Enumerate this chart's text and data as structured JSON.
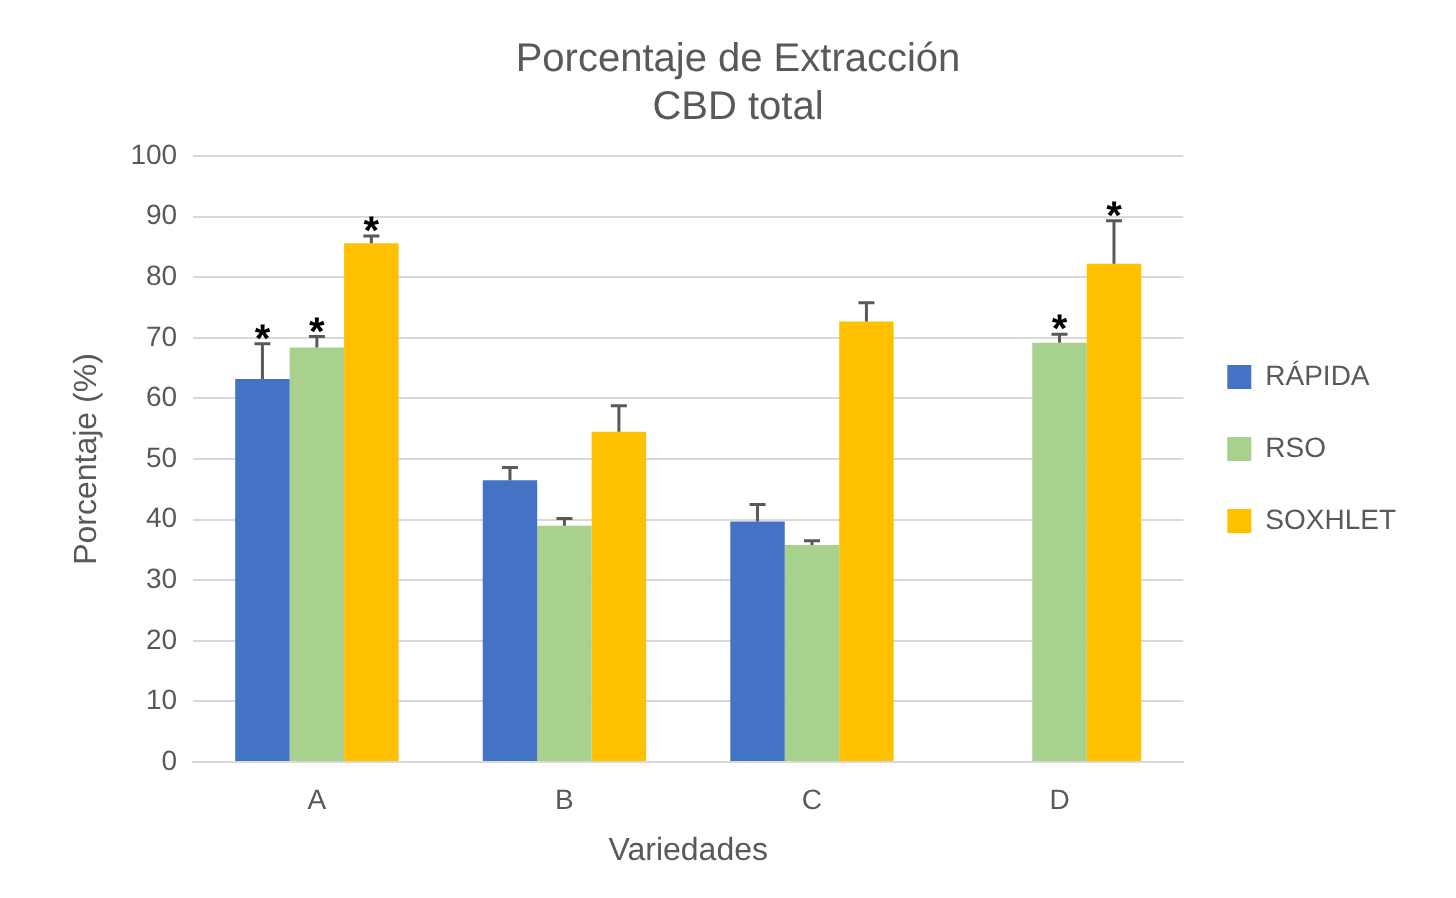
{
  "chart_data": {
    "type": "bar",
    "title": "Porcentaje de Extracción",
    "subtitle": "CBD total",
    "xlabel": "Variedades",
    "ylabel": "Porcentaje (%)",
    "categories": [
      "A",
      "B",
      "C",
      "D"
    ],
    "series": [
      {
        "name": "RÁPIDA",
        "color": "#4472c4",
        "values": [
          63.2,
          46.5,
          39.7,
          null
        ],
        "errors": [
          [
            63.2,
            69.0
          ],
          [
            46.5,
            48.6
          ],
          [
            39.7,
            42.5
          ],
          null
        ],
        "value_labels": [
          "*",
          null,
          null,
          null
        ]
      },
      {
        "name": "RSO",
        "color": "#a9d18e",
        "values": [
          68.4,
          39.0,
          35.8,
          69.2
        ],
        "errors": [
          [
            68.4,
            70.2
          ],
          [
            39.0,
            40.2
          ],
          [
            35.8,
            36.5
          ],
          [
            69.2,
            70.6
          ]
        ],
        "value_labels": [
          "*",
          null,
          null,
          "*"
        ]
      },
      {
        "name": "SOXHLET",
        "color": "#ffc000",
        "values": [
          85.6,
          54.5,
          72.7,
          82.2
        ],
        "errors": [
          [
            85.6,
            86.8
          ],
          [
            54.5,
            58.8
          ],
          [
            72.7,
            75.8
          ],
          [
            82.2,
            89.3
          ]
        ],
        "value_labels": [
          "*",
          null,
          null,
          "*"
        ]
      }
    ],
    "ylim": [
      0,
      100
    ],
    "yticks": [
      0,
      10,
      20,
      30,
      40,
      50,
      60,
      70,
      80,
      90,
      100
    ],
    "grid": "y",
    "legend": "right"
  }
}
